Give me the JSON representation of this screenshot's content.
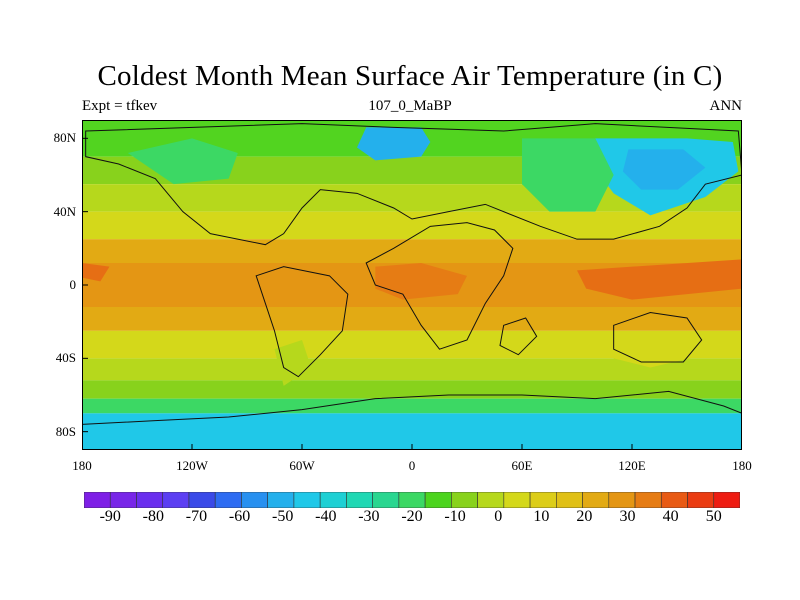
{
  "title": "Coldest Month Mean Surface Air Temperature (in C)",
  "subtitle_left": "Expt = tfkev",
  "subtitle_center": "107_0_MaBP",
  "subtitle_right": "ANN",
  "y_ticks": [
    {
      "label": "80N",
      "lat": 80
    },
    {
      "label": "40N",
      "lat": 40
    },
    {
      "label": "0",
      "lat": 0
    },
    {
      "label": "40S",
      "lat": -40
    },
    {
      "label": "80S",
      "lat": -80
    }
  ],
  "x_ticks": [
    {
      "label": "180",
      "lon": -180
    },
    {
      "label": "120W",
      "lon": -120
    },
    {
      "label": "60W",
      "lon": -60
    },
    {
      "label": "0",
      "lon": 0
    },
    {
      "label": "60E",
      "lon": 60
    },
    {
      "label": "120E",
      "lon": 120
    },
    {
      "label": "180",
      "lon": 180
    }
  ],
  "colorbar": {
    "colors": [
      "#7e1fe6",
      "#7826e8",
      "#6a2fee",
      "#5c3ff2",
      "#3a4ae8",
      "#2e6cf2",
      "#2890f0",
      "#24b0ec",
      "#20c8e8",
      "#1ed0d4",
      "#20d8b4",
      "#2ad690",
      "#3cd864",
      "#4cd41e",
      "#88d21c",
      "#b6d81c",
      "#d4d81a",
      "#dccd18",
      "#e0c016",
      "#e2aa14",
      "#e49614",
      "#e67c14",
      "#e85a14",
      "#ea3c12",
      "#ee1c12"
    ],
    "labels": [
      "-90",
      "-80",
      "-70",
      "-60",
      "-50",
      "-40",
      "-30",
      "-20",
      "-10",
      "0",
      "10",
      "20",
      "30",
      "40",
      "50"
    ],
    "label_values": [
      -90,
      -80,
      -70,
      -60,
      -50,
      -40,
      -30,
      -20,
      -10,
      0,
      10,
      20,
      30,
      40,
      50
    ]
  },
  "map_data": {
    "lat_range": [
      -90,
      90
    ],
    "lon_range": [
      -180,
      180
    ],
    "field": "Coldest month mean surface air temperature",
    "units": "C",
    "zonal_bands": [
      {
        "lat": [
          70,
          90
        ],
        "color": "#52d420"
      },
      {
        "lat": [
          55,
          70
        ],
        "color": "#88d21c"
      },
      {
        "lat": [
          40,
          55
        ],
        "color": "#b6d81c"
      },
      {
        "lat": [
          25,
          40
        ],
        "color": "#d4d81a"
      },
      {
        "lat": [
          12,
          25
        ],
        "color": "#e2aa14"
      },
      {
        "lat": [
          -12,
          12
        ],
        "color": "#e49614"
      },
      {
        "lat": [
          -25,
          -12
        ],
        "color": "#e2aa14"
      },
      {
        "lat": [
          -40,
          -25
        ],
        "color": "#d4d81a"
      },
      {
        "lat": [
          -52,
          -40
        ],
        "color": "#b6d81c"
      },
      {
        "lat": [
          -62,
          -52
        ],
        "color": "#88d21c"
      },
      {
        "lat": [
          -70,
          -62
        ],
        "color": "#3cd864"
      },
      {
        "lat": [
          -90,
          -70
        ],
        "color": "#20c8e8"
      }
    ],
    "patches": [
      {
        "name": "north-polar-cold",
        "color": "#24b0ec",
        "pts": [
          [
            -25,
            86
          ],
          [
            5,
            86
          ],
          [
            10,
            78
          ],
          [
            5,
            70
          ],
          [
            -20,
            68
          ],
          [
            -30,
            75
          ]
        ]
      },
      {
        "name": "asia-cold",
        "color": "#20c8e8",
        "pts": [
          [
            100,
            80
          ],
          [
            150,
            80
          ],
          [
            175,
            78
          ],
          [
            178,
            62
          ],
          [
            160,
            48
          ],
          [
            130,
            38
          ],
          [
            110,
            50
          ],
          [
            95,
            70
          ]
        ]
      },
      {
        "name": "asia-cold-core",
        "color": "#24b0ec",
        "pts": [
          [
            118,
            74
          ],
          [
            148,
            74
          ],
          [
            160,
            64
          ],
          [
            145,
            52
          ],
          [
            125,
            52
          ],
          [
            115,
            62
          ]
        ]
      },
      {
        "name": "asia-mid",
        "color": "#3cd864",
        "pts": [
          [
            60,
            80
          ],
          [
            100,
            80
          ],
          [
            110,
            60
          ],
          [
            100,
            40
          ],
          [
            75,
            40
          ],
          [
            60,
            55
          ]
        ]
      },
      {
        "name": "america-north",
        "color": "#3cd864",
        "pts": [
          [
            -155,
            72
          ],
          [
            -120,
            80
          ],
          [
            -95,
            72
          ],
          [
            -100,
            58
          ],
          [
            -130,
            55
          ]
        ]
      },
      {
        "name": "equatorial-pacific-west",
        "color": "#e66e14",
        "pts": [
          [
            90,
            8
          ],
          [
            180,
            14
          ],
          [
            180,
            -2
          ],
          [
            120,
            -8
          ],
          [
            95,
            -2
          ]
        ]
      },
      {
        "name": "equatorial-pacific-east",
        "color": "#e66e14",
        "pts": [
          [
            -180,
            12
          ],
          [
            -165,
            10
          ],
          [
            -170,
            2
          ],
          [
            -180,
            4
          ]
        ]
      },
      {
        "name": "africa-warm",
        "color": "#e67c14",
        "pts": [
          [
            -20,
            10
          ],
          [
            5,
            12
          ],
          [
            30,
            5
          ],
          [
            25,
            -5
          ],
          [
            -5,
            -8
          ],
          [
            -20,
            -2
          ]
        ]
      },
      {
        "name": "australia-mid",
        "color": "#d4d81a",
        "pts": [
          [
            110,
            -30
          ],
          [
            150,
            -25
          ],
          [
            160,
            -38
          ],
          [
            130,
            -45
          ],
          [
            110,
            -40
          ]
        ]
      },
      {
        "name": "south-america-cool",
        "color": "#b6d81c",
        "pts": [
          [
            -75,
            -35
          ],
          [
            -60,
            -30
          ],
          [
            -55,
            -45
          ],
          [
            -70,
            -55
          ]
        ]
      }
    ],
    "coastlines": [
      {
        "name": "laurasia",
        "pts": [
          [
            -178,
            84
          ],
          [
            -60,
            88
          ],
          [
            -10,
            86
          ],
          [
            50,
            84
          ],
          [
            100,
            88
          ],
          [
            178,
            84
          ],
          [
            180,
            60
          ],
          [
            160,
            55
          ],
          [
            150,
            42
          ],
          [
            135,
            32
          ],
          [
            110,
            25
          ],
          [
            90,
            25
          ],
          [
            70,
            32
          ],
          [
            40,
            44
          ],
          [
            20,
            40
          ],
          [
            0,
            36
          ],
          [
            -10,
            42
          ],
          [
            -30,
            50
          ],
          [
            -50,
            52
          ],
          [
            -60,
            42
          ],
          [
            -70,
            28
          ],
          [
            -80,
            22
          ],
          [
            -110,
            28
          ],
          [
            -125,
            40
          ],
          [
            -140,
            58
          ],
          [
            -160,
            66
          ],
          [
            -178,
            70
          ]
        ]
      },
      {
        "name": "africa-arabia",
        "pts": [
          [
            -25,
            12
          ],
          [
            -10,
            20
          ],
          [
            10,
            32
          ],
          [
            30,
            34
          ],
          [
            45,
            30
          ],
          [
            55,
            20
          ],
          [
            50,
            5
          ],
          [
            40,
            -10
          ],
          [
            30,
            -30
          ],
          [
            15,
            -35
          ],
          [
            5,
            -22
          ],
          [
            -5,
            -5
          ],
          [
            -20,
            0
          ]
        ]
      },
      {
        "name": "south-america",
        "pts": [
          [
            -85,
            5
          ],
          [
            -70,
            10
          ],
          [
            -45,
            5
          ],
          [
            -35,
            -5
          ],
          [
            -38,
            -25
          ],
          [
            -50,
            -38
          ],
          [
            -62,
            -50
          ],
          [
            -70,
            -45
          ],
          [
            -75,
            -25
          ],
          [
            -80,
            -10
          ]
        ]
      },
      {
        "name": "australia",
        "pts": [
          [
            110,
            -22
          ],
          [
            130,
            -15
          ],
          [
            150,
            -18
          ],
          [
            158,
            -30
          ],
          [
            148,
            -42
          ],
          [
            125,
            -42
          ],
          [
            110,
            -35
          ]
        ]
      },
      {
        "name": "india",
        "pts": [
          [
            50,
            -22
          ],
          [
            62,
            -18
          ],
          [
            68,
            -28
          ],
          [
            58,
            -38
          ],
          [
            48,
            -33
          ]
        ]
      },
      {
        "name": "antarctica",
        "pts": [
          [
            -180,
            -76
          ],
          [
            -140,
            -74
          ],
          [
            -100,
            -72
          ],
          [
            -60,
            -68
          ],
          [
            -20,
            -62
          ],
          [
            20,
            -60
          ],
          [
            60,
            -60
          ],
          [
            100,
            -62
          ],
          [
            140,
            -58
          ],
          [
            170,
            -66
          ],
          [
            180,
            -70
          ],
          [
            180,
            -90
          ],
          [
            -180,
            -90
          ]
        ]
      }
    ]
  }
}
